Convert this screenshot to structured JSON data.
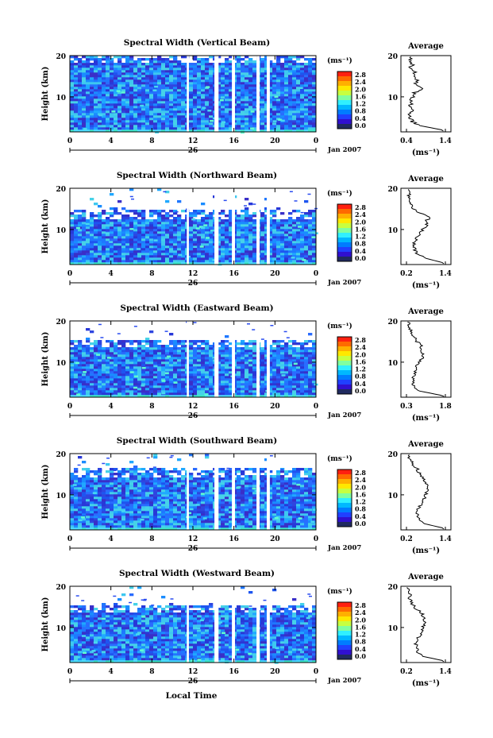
{
  "local_time_label": "Local Time",
  "height_label": "Height (km)",
  "average_title": "Average",
  "unit_label": "(ms⁻¹)",
  "date_label": "Jan 2007",
  "day_label": "26",
  "colorscale": {
    "ticks": [
      "2.8",
      "2.4",
      "2.0",
      "1.6",
      "1.2",
      "0.8",
      "0.4",
      "0.0"
    ],
    "colors": [
      "#ff2010",
      "#ff6a00",
      "#ffb000",
      "#ffe800",
      "#c8ff40",
      "#80ffa0",
      "#30f0ff",
      "#00b8ff",
      "#007cff",
      "#2040ff",
      "#3010d0",
      "#202a60"
    ]
  },
  "panels": [
    {
      "title": "Spectral Width (Vertical Beam)",
      "avg_xmin_label": "0.4",
      "avg_xmax_label": "1.4"
    },
    {
      "title": "Spectral Width (Northward Beam)",
      "avg_xmin_label": "0.2",
      "avg_xmax_label": "1.4"
    },
    {
      "title": "Spectral Width (Eastward Beam)",
      "avg_xmin_label": "0.3",
      "avg_xmax_label": "1.8"
    },
    {
      "title": "Spectral Width (Southward Beam)",
      "avg_xmin_label": "0.2",
      "avg_xmax_label": "1.4"
    },
    {
      "title": "Spectral Width (Westward Beam)",
      "avg_xmin_label": "0.2",
      "avg_xmax_label": "1.4"
    }
  ],
  "chart_data": {
    "type": "heatmap",
    "x": {
      "label": "Local Time",
      "range": [
        0,
        24
      ],
      "ticks": [
        "0",
        "4",
        "8",
        "12",
        "16",
        "20",
        "0"
      ]
    },
    "y": {
      "label": "Height (km)",
      "range": [
        1.5,
        20
      ],
      "ticks": [
        "10",
        "20"
      ]
    },
    "colorbar": {
      "label": "(ms⁻¹)",
      "range": [
        0,
        3.0
      ],
      "ticks": [
        0.0,
        0.4,
        0.8,
        1.2,
        1.6,
        2.0,
        2.4,
        2.8
      ]
    },
    "date": "Jan 2007",
    "day_marker": "26",
    "series": [
      {
        "name": "Vertical Beam",
        "data_top_km": 20,
        "gaps_hours": [
          [
            11.4,
            11.6
          ],
          [
            14.1,
            14.5
          ],
          [
            15.8,
            16.1
          ],
          [
            18.2,
            18.5
          ],
          [
            19.2,
            19.5
          ]
        ],
        "average": {
          "x_ticks": [
            0.4,
            1.4
          ],
          "profile_heights": [
            2,
            3,
            4,
            5,
            6,
            7,
            8,
            9,
            10,
            11,
            12,
            13,
            14,
            15,
            16,
            17,
            18,
            19,
            20
          ],
          "profile_values": [
            1.3,
            0.75,
            0.55,
            0.5,
            0.48,
            0.55,
            0.5,
            0.52,
            0.58,
            0.62,
            0.85,
            0.6,
            0.7,
            0.55,
            0.6,
            0.5,
            0.55,
            0.5,
            0.45
          ]
        }
      },
      {
        "name": "Northward Beam",
        "data_top_km": 14,
        "gaps_hours": [
          [
            11.4,
            11.6
          ],
          [
            14.1,
            14.5
          ],
          [
            15.8,
            16.1
          ],
          [
            18.2,
            18.5
          ],
          [
            19.2,
            19.5
          ]
        ],
        "average": {
          "x_ticks": [
            0.2,
            1.4
          ],
          "profile_heights": [
            2,
            3,
            4,
            5,
            6,
            7,
            8,
            9,
            10,
            11,
            12,
            13,
            14,
            15,
            16,
            17,
            18,
            19,
            20
          ],
          "profile_values": [
            1.3,
            0.8,
            0.55,
            0.45,
            0.42,
            0.45,
            0.5,
            0.6,
            0.7,
            0.85,
            0.8,
            0.95,
            0.6,
            0.4,
            0.35,
            0.3,
            0.25,
            0.3,
            0.25
          ]
        }
      },
      {
        "name": "Eastward Beam",
        "data_top_km": 15,
        "gaps_hours": [
          [
            11.4,
            11.6
          ],
          [
            14.1,
            14.5
          ],
          [
            15.8,
            16.1
          ],
          [
            18.2,
            18.5
          ],
          [
            19.2,
            19.5
          ]
        ],
        "average": {
          "x_ticks": [
            0.3,
            1.8
          ],
          "profile_heights": [
            2,
            3,
            4,
            5,
            6,
            7,
            8,
            9,
            10,
            11,
            12,
            13,
            14,
            15,
            16,
            17,
            18,
            19,
            20
          ],
          "profile_values": [
            1.6,
            0.8,
            0.6,
            0.55,
            0.55,
            0.6,
            0.65,
            0.7,
            0.8,
            0.9,
            0.95,
            0.85,
            0.9,
            0.7,
            0.6,
            0.5,
            0.45,
            0.4,
            0.4
          ]
        }
      },
      {
        "name": "Southward Beam",
        "data_top_km": 16,
        "gaps_hours": [
          [
            11.4,
            11.6
          ],
          [
            14.1,
            14.5
          ],
          [
            15.8,
            16.1
          ],
          [
            18.2,
            18.5
          ],
          [
            19.2,
            19.5
          ]
        ],
        "average": {
          "x_ticks": [
            0.2,
            1.4
          ],
          "profile_heights": [
            2,
            3,
            4,
            5,
            6,
            7,
            8,
            9,
            10,
            11,
            12,
            13,
            14,
            15,
            16,
            17,
            18,
            19,
            20
          ],
          "profile_values": [
            1.3,
            0.75,
            0.6,
            0.55,
            0.55,
            0.6,
            0.65,
            0.75,
            0.8,
            0.85,
            0.9,
            0.8,
            0.7,
            0.65,
            0.55,
            0.45,
            0.35,
            0.3,
            0.3
          ]
        }
      },
      {
        "name": "Westward Beam",
        "data_top_km": 15,
        "gaps_hours": [
          [
            11.4,
            11.6
          ],
          [
            14.1,
            14.5
          ],
          [
            15.8,
            16.1
          ],
          [
            18.2,
            18.5
          ],
          [
            19.2,
            19.5
          ]
        ],
        "average": {
          "x_ticks": [
            0.2,
            1.4
          ],
          "profile_heights": [
            2,
            3,
            4,
            5,
            6,
            7,
            8,
            9,
            10,
            11,
            12,
            13,
            14,
            15,
            16,
            17,
            18,
            19,
            20
          ],
          "profile_values": [
            1.3,
            0.7,
            0.55,
            0.5,
            0.5,
            0.55,
            0.6,
            0.65,
            0.7,
            0.8,
            0.75,
            0.7,
            0.6,
            0.45,
            0.35,
            0.3,
            0.3,
            0.25,
            0.25
          ]
        }
      }
    ]
  }
}
